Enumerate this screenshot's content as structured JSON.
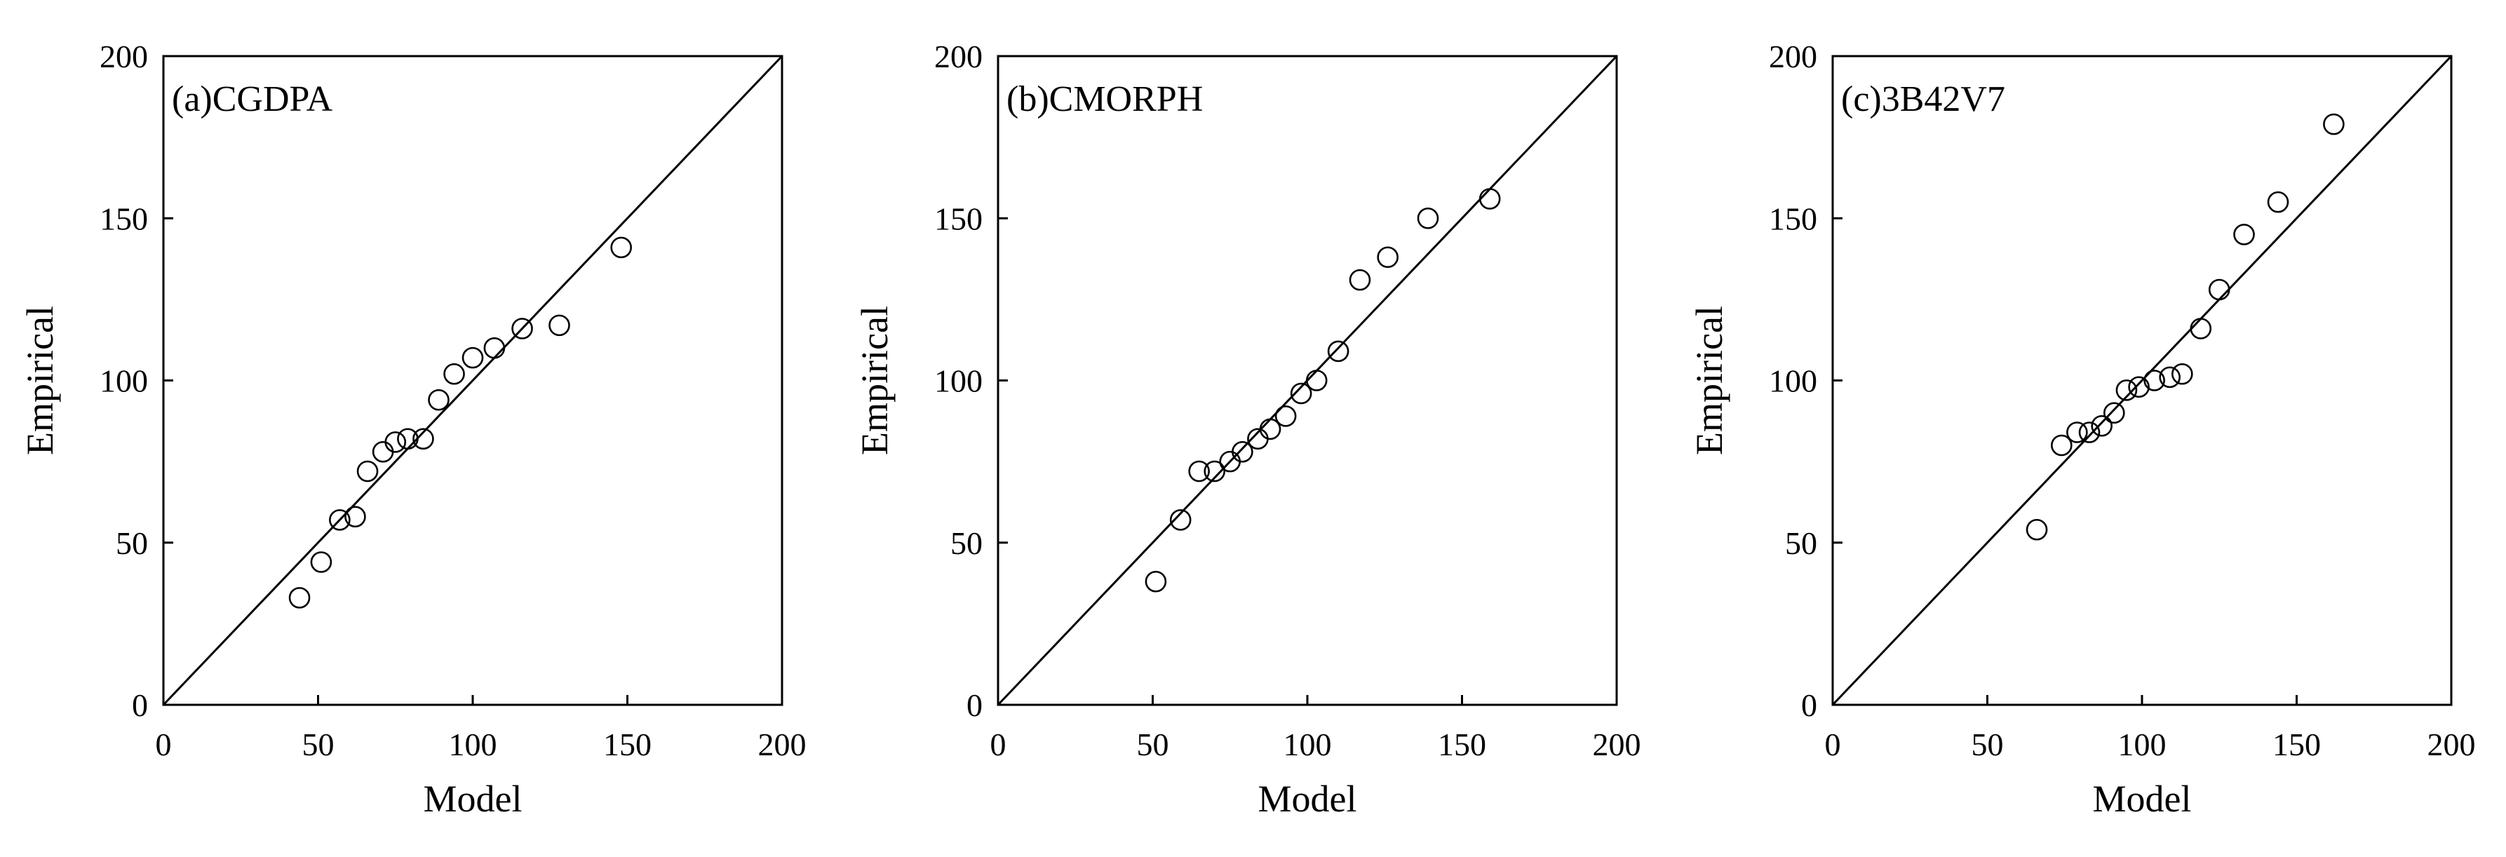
{
  "chart_data": [
    {
      "type": "scatter",
      "title": "(a)CGDPA",
      "xlabel": "Model",
      "ylabel": "Empirical",
      "xlim": [
        0,
        200
      ],
      "ylim": [
        0,
        200
      ],
      "xticks": [
        "0",
        "50",
        "100",
        "150",
        "200"
      ],
      "yticks": [
        "0",
        "50",
        "100",
        "150",
        "200"
      ],
      "reference_line": "y = x",
      "points": [
        {
          "x": 44,
          "y": 33
        },
        {
          "x": 51,
          "y": 44
        },
        {
          "x": 57,
          "y": 57
        },
        {
          "x": 62,
          "y": 58
        },
        {
          "x": 66,
          "y": 72
        },
        {
          "x": 71,
          "y": 78
        },
        {
          "x": 75,
          "y": 81
        },
        {
          "x": 79,
          "y": 82
        },
        {
          "x": 84,
          "y": 82
        },
        {
          "x": 89,
          "y": 94
        },
        {
          "x": 94,
          "y": 102
        },
        {
          "x": 100,
          "y": 107
        },
        {
          "x": 107,
          "y": 110
        },
        {
          "x": 116,
          "y": 116
        },
        {
          "x": 128,
          "y": 117
        },
        {
          "x": 148,
          "y": 141
        }
      ]
    },
    {
      "type": "scatter",
      "title": "(b)CMORPH",
      "xlabel": "Model",
      "ylabel": "Empirical",
      "xlim": [
        0,
        200
      ],
      "ylim": [
        0,
        200
      ],
      "xticks": [
        "0",
        "50",
        "100",
        "150",
        "200"
      ],
      "yticks": [
        "0",
        "50",
        "100",
        "150",
        "200"
      ],
      "reference_line": "y = x",
      "points": [
        {
          "x": 51,
          "y": 38
        },
        {
          "x": 59,
          "y": 57
        },
        {
          "x": 65,
          "y": 72
        },
        {
          "x": 70,
          "y": 72
        },
        {
          "x": 75,
          "y": 75
        },
        {
          "x": 79,
          "y": 78
        },
        {
          "x": 84,
          "y": 82
        },
        {
          "x": 88,
          "y": 85
        },
        {
          "x": 93,
          "y": 89
        },
        {
          "x": 98,
          "y": 96
        },
        {
          "x": 103,
          "y": 100
        },
        {
          "x": 110,
          "y": 109
        },
        {
          "x": 117,
          "y": 131
        },
        {
          "x": 126,
          "y": 138
        },
        {
          "x": 139,
          "y": 150
        },
        {
          "x": 159,
          "y": 156
        }
      ]
    },
    {
      "type": "scatter",
      "title": "(c)3B42V7",
      "xlabel": "Model",
      "ylabel": "Empirical",
      "xlim": [
        0,
        200
      ],
      "ylim": [
        0,
        200
      ],
      "xticks": [
        "0",
        "50",
        "100",
        "150",
        "200"
      ],
      "yticks": [
        "0",
        "50",
        "100",
        "150",
        "200"
      ],
      "reference_line": "y = x",
      "points": [
        {
          "x": 66,
          "y": 54
        },
        {
          "x": 74,
          "y": 80
        },
        {
          "x": 79,
          "y": 84
        },
        {
          "x": 83,
          "y": 84
        },
        {
          "x": 87,
          "y": 86
        },
        {
          "x": 91,
          "y": 90
        },
        {
          "x": 95,
          "y": 97
        },
        {
          "x": 99,
          "y": 98
        },
        {
          "x": 104,
          "y": 100
        },
        {
          "x": 109,
          "y": 101
        },
        {
          "x": 113,
          "y": 102
        },
        {
          "x": 119,
          "y": 116
        },
        {
          "x": 125,
          "y": 128
        },
        {
          "x": 133,
          "y": 145
        },
        {
          "x": 144,
          "y": 155
        },
        {
          "x": 162,
          "y": 179
        }
      ]
    }
  ]
}
